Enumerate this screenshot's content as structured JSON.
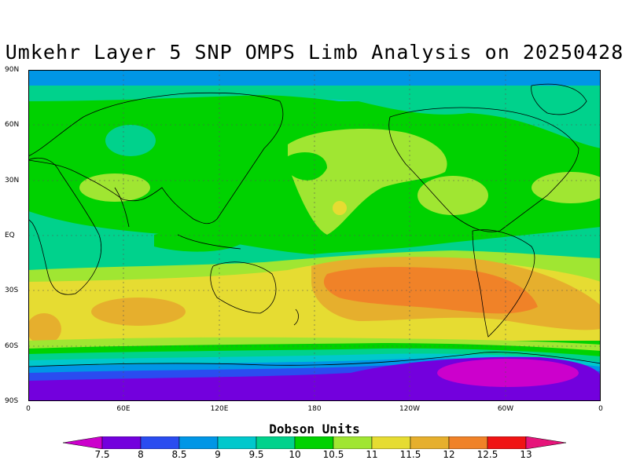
{
  "map": {
    "title": "Umkehr Layer 5 SNP OMPS Limb Analysis on 20250428",
    "projection": "equirectangular, longitude 0 to 360 (0 at left and right edges)",
    "lat_labels": [
      "90N",
      "60N",
      "30N",
      "EQ",
      "30S",
      "60S",
      "90S"
    ],
    "lon_labels": [
      "0",
      "60E",
      "120E",
      "180",
      "120W",
      "60W",
      "0"
    ],
    "colorbar_title": "Dobson Units",
    "colorbar_labels": [
      "7.5",
      "8",
      "8.5",
      "9",
      "9.5",
      "10",
      "10.5",
      "11",
      "11.5",
      "12",
      "12.5",
      "13"
    ],
    "colors": {
      "lt7_5": "#cc00cc",
      "b7_5_8": "#7300dd",
      "b8_8_5": "#2a4cf0",
      "b8_5_9": "#0096e6",
      "b9_9_5": "#00c8cc",
      "b9_5_10": "#00d28c",
      "b10_10_5": "#00d200",
      "b10_5_11": "#a0e632",
      "b11_11_5": "#e6dc32",
      "b11_5_12": "#e6af2d",
      "b12_12_5": "#f08228",
      "b12_5_13": "#f01414",
      "gt13": "#e6147a"
    }
  }
}
